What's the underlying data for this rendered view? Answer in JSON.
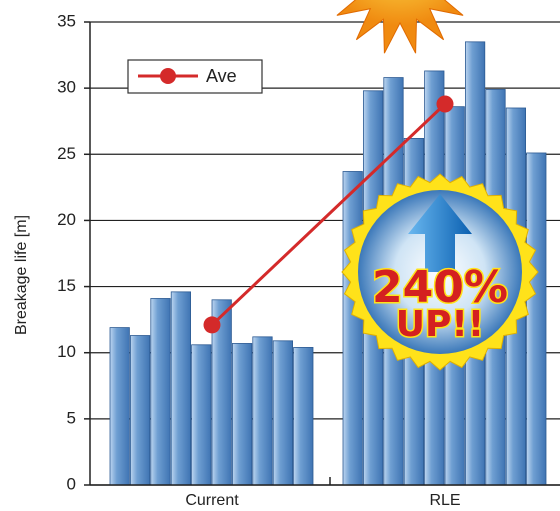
{
  "chart_data": {
    "type": "bar",
    "ylabel": "Breakage life [m]",
    "categories": [
      "Current",
      "RLE"
    ],
    "values": [
      [
        11.9,
        11.3,
        14.1,
        14.6,
        10.6,
        14.0,
        10.7,
        11.2,
        10.9,
        10.4
      ],
      [
        23.7,
        29.8,
        30.8,
        26.2,
        31.3,
        28.6,
        33.5,
        29.9,
        28.5,
        25.1
      ]
    ],
    "color": "#5b8fc7",
    "series": [
      {
        "name": "Ave",
        "type": "line",
        "color": "#d42a2a",
        "values": [
          12.1,
          28.8
        ]
      }
    ],
    "ylim": [
      0,
      35
    ],
    "yticks": [
      0,
      5,
      10,
      15,
      20,
      25,
      30,
      35
    ],
    "grid": true,
    "annotation": [
      "240%",
      "UP!!"
    ]
  }
}
